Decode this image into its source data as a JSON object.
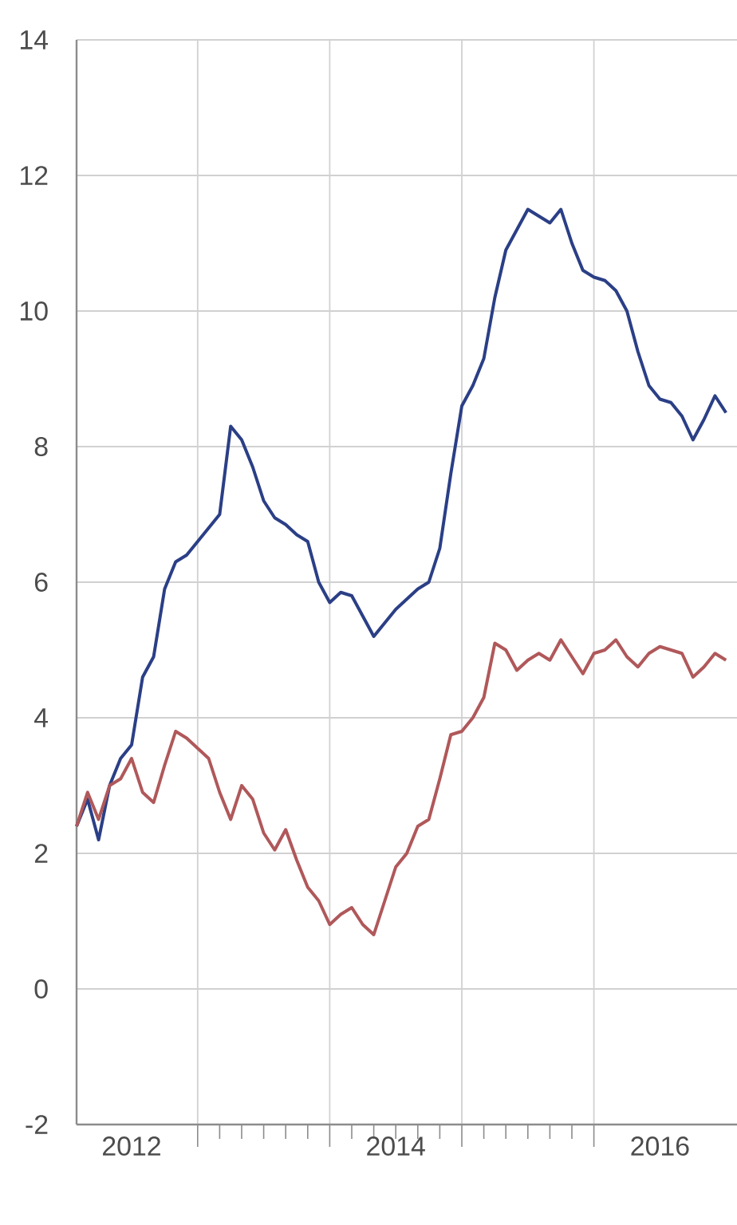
{
  "chart_data": {
    "type": "line",
    "x": [
      "2012-02",
      "2012-03",
      "2012-04",
      "2012-05",
      "2012-06",
      "2012-07",
      "2012-08",
      "2012-09",
      "2012-10",
      "2012-11",
      "2012-12",
      "2013-01",
      "2013-02",
      "2013-03",
      "2013-04",
      "2013-05",
      "2013-06",
      "2013-07",
      "2013-08",
      "2013-09",
      "2013-10",
      "2013-11",
      "2013-12",
      "2014-01",
      "2014-02",
      "2014-03",
      "2014-04",
      "2014-05",
      "2014-06",
      "2014-07",
      "2014-08",
      "2014-09",
      "2014-10",
      "2014-11",
      "2014-12",
      "2015-01",
      "2015-02",
      "2015-03",
      "2015-04",
      "2015-05",
      "2015-06",
      "2015-07",
      "2015-08",
      "2015-09",
      "2015-10",
      "2015-11",
      "2015-12",
      "2016-01",
      "2016-02",
      "2016-03",
      "2016-04",
      "2016-05",
      "2016-06",
      "2016-07",
      "2016-08",
      "2016-09",
      "2016-10",
      "2016-11",
      "2016-12",
      "2017-01"
    ],
    "series": [
      {
        "color": "#2b3f86",
        "values": [
          2.4,
          2.8,
          2.2,
          3.0,
          3.4,
          3.6,
          4.6,
          4.9,
          5.9,
          6.3,
          6.4,
          6.6,
          6.8,
          7.0,
          8.3,
          8.1,
          7.7,
          7.2,
          6.95,
          6.85,
          6.7,
          6.6,
          6.0,
          5.7,
          5.85,
          5.8,
          5.5,
          5.2,
          5.4,
          5.6,
          5.75,
          5.9,
          6.0,
          6.5,
          7.6,
          8.6,
          8.9,
          9.3,
          10.2,
          10.9,
          11.2,
          11.5,
          11.4,
          11.3,
          11.5,
          11.0,
          10.6,
          10.5,
          10.45,
          10.3,
          10.0,
          9.4,
          8.9,
          8.7,
          8.65,
          8.45,
          8.1,
          8.4,
          8.75,
          8.5
        ]
      },
      {
        "color": "#b0585a",
        "values": [
          2.4,
          2.9,
          2.5,
          3.0,
          3.1,
          3.4,
          2.9,
          2.75,
          3.3,
          3.8,
          3.7,
          3.55,
          3.4,
          2.9,
          2.5,
          3.0,
          2.8,
          2.3,
          2.05,
          2.35,
          1.9,
          1.5,
          1.3,
          0.95,
          1.1,
          1.2,
          0.95,
          0.8,
          1.3,
          1.8,
          2.0,
          2.4,
          2.5,
          3.1,
          3.75,
          3.8,
          4.0,
          4.3,
          5.1,
          5.0,
          4.7,
          4.85,
          4.95,
          4.85,
          5.15,
          4.9,
          4.65,
          4.95,
          5.0,
          5.15,
          4.9,
          4.75,
          4.95,
          5.05,
          5.0,
          4.95,
          4.6,
          4.75,
          4.95,
          4.85
        ]
      }
    ],
    "xlim": [
      "2012-02",
      "2017-02"
    ],
    "xticks": [
      {
        "value": "2012-07",
        "label": "2012"
      },
      {
        "value": "2013-01",
        "label": null
      },
      {
        "value": "2014-01",
        "label": null
      },
      {
        "value": "2014-07",
        "label": "2014"
      },
      {
        "value": "2015-01",
        "label": null
      },
      {
        "value": "2016-01",
        "label": null
      },
      {
        "value": "2016-07",
        "label": "2016"
      }
    ],
    "ylim": [
      -2,
      14
    ],
    "yticks": [
      -2,
      0,
      2,
      4,
      6,
      8,
      10,
      12,
      14
    ],
    "grid": true,
    "marker": "none",
    "line_style": "solid"
  }
}
